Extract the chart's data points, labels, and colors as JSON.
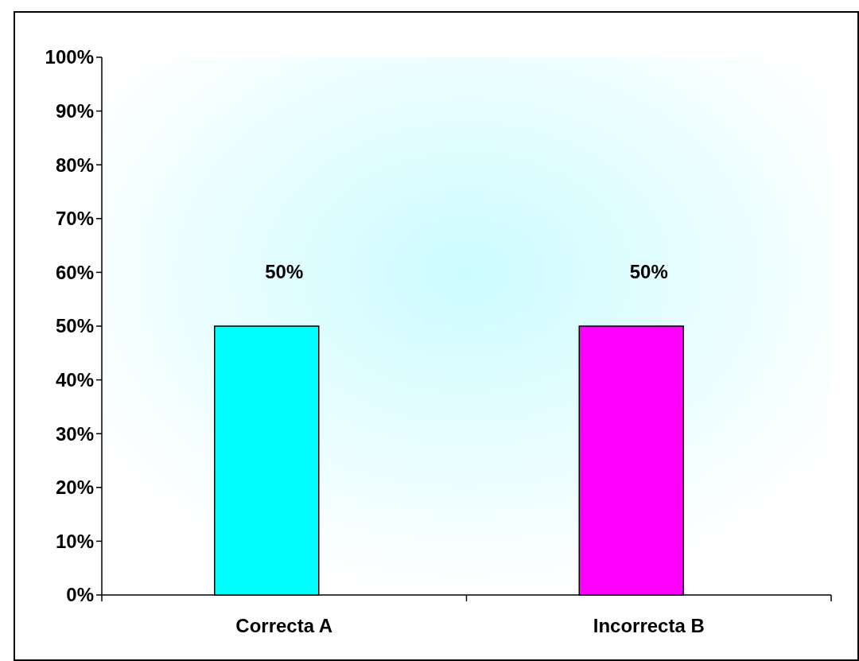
{
  "chart_data": {
    "type": "bar",
    "categories": [
      "Correcta A",
      "Incorrecta B"
    ],
    "values": [
      50,
      50
    ],
    "colors": [
      "#00ffff",
      "#ff00ff"
    ],
    "value_labels": [
      "50%",
      "50%"
    ],
    "ylim": [
      0,
      100
    ],
    "yticks": [
      {
        "value": 0,
        "label": "0%"
      },
      {
        "value": 10,
        "label": "10%"
      },
      {
        "value": 20,
        "label": "20%"
      },
      {
        "value": 30,
        "label": "30%"
      },
      {
        "value": 40,
        "label": "40%"
      },
      {
        "value": 50,
        "label": "50%"
      },
      {
        "value": 60,
        "label": "60%"
      },
      {
        "value": 70,
        "label": "70%"
      },
      {
        "value": 80,
        "label": "80%"
      },
      {
        "value": 90,
        "label": "90%"
      },
      {
        "value": 100,
        "label": "100%"
      }
    ]
  }
}
